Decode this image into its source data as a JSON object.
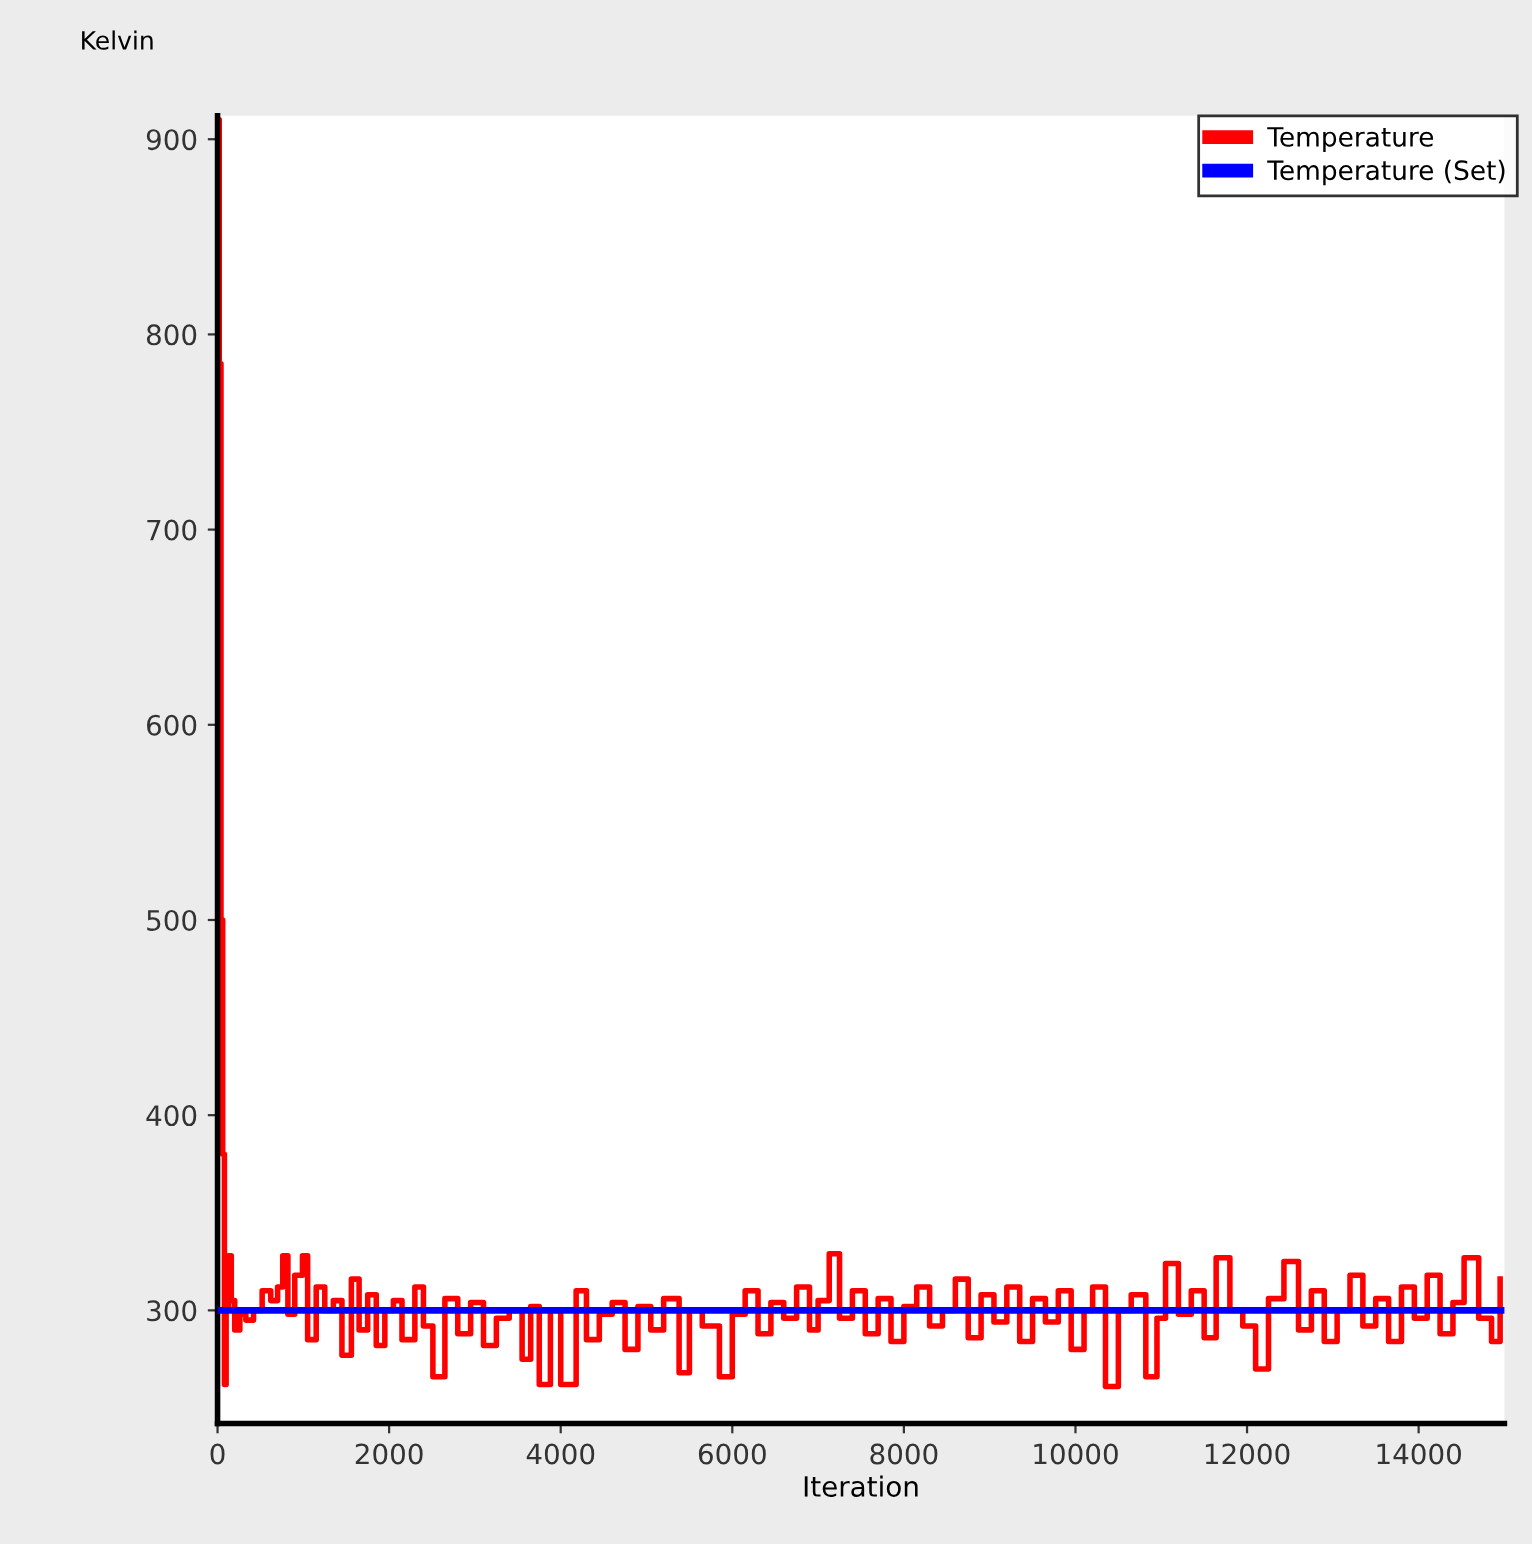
{
  "chart_data": {
    "type": "step",
    "xlabel": "Iteration",
    "ylabel": "Kelvin",
    "xlim": [
      0,
      15000
    ],
    "ylim": [
      242,
      912
    ],
    "xticks": [
      0,
      2000,
      4000,
      6000,
      8000,
      10000,
      12000,
      14000
    ],
    "yticks": [
      300,
      400,
      500,
      600,
      700,
      800,
      900
    ],
    "grid": false,
    "legend": "top right",
    "marker": "none",
    "line_style": "solid",
    "series": [
      {
        "name": "Temperature",
        "color": "#ff0000",
        "x": [
          0,
          20,
          40,
          60,
          80,
          100,
          130,
          160,
          200,
          260,
          330,
          420,
          520,
          620,
          700,
          760,
          820,
          900,
          990,
          1050,
          1150,
          1250,
          1350,
          1450,
          1560,
          1650,
          1750,
          1850,
          1950,
          2050,
          2150,
          2300,
          2400,
          2510,
          2650,
          2800,
          2950,
          3100,
          3250,
          3400,
          3550,
          3650,
          3750,
          3880,
          4000,
          4180,
          4300,
          4450,
          4600,
          4750,
          4900,
          5050,
          5200,
          5380,
          5500,
          5650,
          5850,
          6000,
          6150,
          6300,
          6450,
          6600,
          6750,
          6900,
          7000,
          7130,
          7250,
          7400,
          7550,
          7700,
          7850,
          8000,
          8150,
          8300,
          8450,
          8600,
          8750,
          8900,
          9050,
          9200,
          9350,
          9500,
          9650,
          9800,
          9950,
          10100,
          10200,
          10350,
          10500,
          10650,
          10820,
          10950,
          11050,
          11200,
          11350,
          11500,
          11640,
          11800,
          11950,
          12100,
          12250,
          12430,
          12600,
          12750,
          12900,
          13050,
          13200,
          13350,
          13500,
          13650,
          13800,
          13950,
          14100,
          14250,
          14400,
          14530,
          14700,
          14850,
          14950
        ],
        "values": [
          910,
          785,
          500,
          380,
          262,
          300,
          328,
          305,
          290,
          298,
          295,
          300,
          310,
          305,
          312,
          328,
          298,
          318,
          328,
          285,
          312,
          300,
          305,
          277,
          316,
          290,
          308,
          282,
          300,
          305,
          285,
          312,
          292,
          266,
          306,
          288,
          304,
          282,
          296,
          300,
          275,
          302,
          262,
          300,
          262,
          310,
          285,
          298,
          304,
          280,
          302,
          290,
          306,
          268,
          300,
          292,
          266,
          298,
          310,
          288,
          304,
          296,
          312,
          290,
          305,
          329,
          296,
          310,
          288,
          306,
          284,
          302,
          312,
          292,
          300,
          316,
          286,
          308,
          294,
          312,
          284,
          306,
          294,
          310,
          280,
          300,
          312,
          261,
          300,
          308,
          266,
          296,
          324,
          298,
          310,
          286,
          327,
          300,
          292,
          270,
          306,
          325,
          290,
          310,
          284,
          300,
          318,
          292,
          306,
          284,
          312,
          296,
          318,
          288,
          304,
          327,
          296,
          284,
          316
        ]
      },
      {
        "name": "Temperature (Set)",
        "color": "#0000ff",
        "type": "line",
        "x": [
          0,
          15000
        ],
        "values": [
          300,
          300
        ]
      }
    ]
  }
}
